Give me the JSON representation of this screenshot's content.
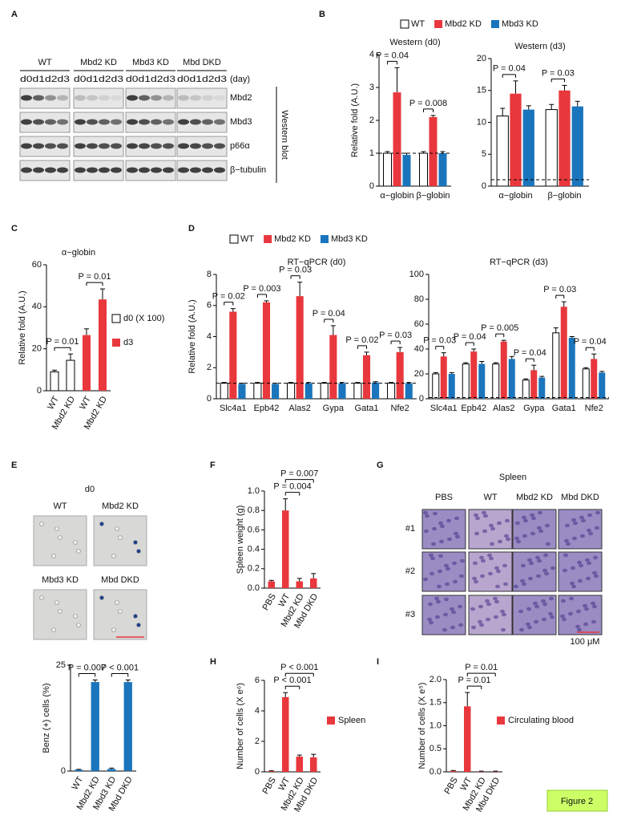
{
  "panel_letters": [
    "A",
    "B",
    "C",
    "D",
    "E",
    "F",
    "G",
    "H",
    "I"
  ],
  "blot": {
    "groups": [
      "WT",
      "Mbd2 KD",
      "Mbd3 KD",
      "Mbd DKD"
    ],
    "days": "d0d1d2d3",
    "day_unit": "(day)",
    "rows": [
      "Mbd2",
      "Mbd3",
      "p66α",
      "β−tubulin"
    ],
    "label": "Western blot"
  },
  "stain": {
    "title": "d0",
    "labels": [
      "WT",
      "Mbd2 KD",
      "Mbd3 KD",
      "Mbd DKD"
    ]
  },
  "histology": {
    "title": "Spleen",
    "columns": [
      "PBS",
      "WT",
      "Mbd2 KD",
      "Mbd DKD"
    ],
    "rows": [
      "#1",
      "#2",
      "#3"
    ],
    "scale": "100 μM"
  },
  "figure_label": "Figure 2",
  "chart_data": [
    {
      "type": "bar",
      "title": "Western (d0)",
      "y_label": "Relative fold (A.U.)",
      "categories": [
        "α−globin",
        "β−globin"
      ],
      "series": [
        {
          "name": "WT",
          "color": "#ffffff",
          "values": [
            1,
            1
          ],
          "errors": [
            0.05,
            0.05
          ]
        },
        {
          "name": "Mbd2 KD",
          "color": "#e8383d",
          "values": [
            2.85,
            2.1
          ],
          "errors": [
            0.75,
            0.05
          ]
        },
        {
          "name": "Mbd3 KD",
          "color": "#1a75bc",
          "values": [
            0.95,
            1.0
          ],
          "errors": [
            0.05,
            0.05
          ]
        }
      ],
      "ylim": [
        0,
        4
      ],
      "yticks": [
        0,
        1,
        2,
        3,
        4
      ],
      "hline": 1,
      "annotations": [
        "P = 0.04",
        "P = 0.008"
      ]
    },
    {
      "type": "bar",
      "title": "Western (d3)",
      "categories": [
        "α−globin",
        "β−globin"
      ],
      "series": [
        {
          "color": "#ffffff",
          "values": [
            11,
            12
          ],
          "errors": [
            1.2,
            0.8
          ]
        },
        {
          "color": "#e8383d",
          "values": [
            14.5,
            15
          ],
          "errors": [
            2,
            0.8
          ]
        },
        {
          "color": "#1a75bc",
          "values": [
            12,
            12.5
          ],
          "errors": [
            0.6,
            0.8
          ]
        }
      ],
      "ylim": [
        0,
        20
      ],
      "yticks": [
        0,
        5,
        10,
        15,
        20
      ],
      "hline": 1,
      "annotations": [
        "P = 0.04",
        "P = 0.03"
      ]
    },
    {
      "type": "bar",
      "title": "α−globin",
      "y_label": "Relative fold (A.U.)",
      "categories": [
        "WT",
        "Mbd2 KD",
        "WT",
        "Mbd2 KD"
      ],
      "values": [
        9,
        14.5,
        26.5,
        43.5
      ],
      "errors": [
        0.8,
        3,
        3,
        5
      ],
      "colors": [
        "#ffffff",
        "#ffffff",
        "#e8383d",
        "#e8383d"
      ],
      "legend": [
        {
          "name": "d0 (X 100)",
          "color": "#ffffff"
        },
        {
          "name": "d3",
          "color": "#e8383d"
        }
      ],
      "ylim": [
        0,
        60
      ],
      "yticks": [
        0,
        20,
        40,
        60
      ],
      "annotations": [
        "P = 0.01",
        "P = 0.01"
      ]
    },
    {
      "type": "bar",
      "title": "RT−qPCR (d0)",
      "y_label": "Relative fold (A.U.)",
      "categories": [
        "Slc4a1",
        "Epb42",
        "Alas2",
        "Gypa",
        "Gata1",
        "Nfe2"
      ],
      "series": [
        {
          "name": "WT",
          "color": "#ffffff",
          "values": [
            1,
            1,
            1,
            1,
            1,
            1
          ],
          "errors": [
            0.05,
            0.05,
            0.05,
            0.05,
            0.05,
            0.05
          ]
        },
        {
          "name": "Mbd2 KD",
          "color": "#e8383d",
          "values": [
            5.6,
            6.2,
            6.6,
            4.1,
            2.8,
            3.0
          ],
          "errors": [
            0.2,
            0.1,
            0.9,
            0.6,
            0.2,
            0.3
          ]
        },
        {
          "name": "Mbd3 KD",
          "color": "#1a75bc",
          "values": [
            0.95,
            0.95,
            1,
            1,
            1.05,
            1.0
          ],
          "errors": [
            0.05,
            0.05,
            0.05,
            0.05,
            0.05,
            0.05
          ]
        }
      ],
      "ylim": [
        0,
        8
      ],
      "yticks": [
        0,
        2,
        4,
        6,
        8
      ],
      "hline": 1,
      "annotations": [
        "P = 0.02",
        "P = 0.003",
        "P = 0.03",
        "P = 0.04",
        "P = 0.02",
        "P = 0.03"
      ]
    },
    {
      "type": "bar",
      "title": "RT−qPCR (d3)",
      "categories": [
        "Slc4a1",
        "Epb42",
        "Alas2",
        "Gypa",
        "Gata1",
        "Nfe2"
      ],
      "series": [
        {
          "color": "#ffffff",
          "values": [
            20,
            28,
            28,
            15,
            53,
            24
          ],
          "errors": [
            1,
            1,
            1,
            1,
            4,
            1
          ]
        },
        {
          "color": "#e8383d",
          "values": [
            34,
            38,
            46,
            23,
            74,
            32
          ],
          "errors": [
            3,
            2,
            1,
            4,
            4,
            4
          ]
        },
        {
          "color": "#1a75bc",
          "values": [
            20,
            28,
            32,
            17,
            49,
            21
          ],
          "errors": [
            1,
            2,
            2,
            1,
            1,
            1
          ]
        }
      ],
      "ylim": [
        0,
        100
      ],
      "yticks": [
        0,
        20,
        40,
        60,
        80,
        100
      ],
      "hline": 1,
      "annotations": [
        "P = 0.03",
        "P = 0.04",
        "P = 0.005",
        "P = 0.04",
        "P = 0.03",
        "P = 0.04"
      ]
    },
    {
      "type": "bar",
      "y_label": "Benz (+) cells (%)",
      "categories": [
        "WT",
        "Mbd2 KD",
        "Mbd3 KD",
        "Mbd DKD"
      ],
      "values": [
        0.3,
        21,
        0.5,
        21
      ],
      "errors": [
        0.1,
        0.5,
        0.2,
        0.5
      ],
      "color": "#1a75bc",
      "ylim": [
        0,
        25
      ],
      "yticks": [
        0,
        25
      ],
      "annotations": [
        "P = 0.007",
        "P < 0.001"
      ]
    },
    {
      "type": "bar",
      "y_label": "Spleen weight (g)",
      "categories": [
        "PBS",
        "WT",
        "Mbd2 KD",
        "Mbd DKD"
      ],
      "values": [
        0.07,
        0.8,
        0.07,
        0.1
      ],
      "errors": [
        0.01,
        0.12,
        0.03,
        0.05
      ],
      "color": "#e8383d",
      "ylim": [
        0,
        1.0
      ],
      "yticks": [
        {
          "value": 0,
          "label": "0.0"
        },
        0.2,
        0.4,
        0.6,
        0.8,
        {
          "value": 1,
          "label": "1.0"
        }
      ],
      "annotations": [
        "P = 0.007",
        "P = 0.004"
      ]
    },
    {
      "type": "bar",
      "y_label": "Number of cells (X e⁶)",
      "categories": [
        "PBS",
        "WT",
        "Mbd2 KD",
        "Mbd DKD"
      ],
      "values": [
        0.05,
        4.9,
        1.0,
        0.95
      ],
      "errors": [
        0.02,
        0.3,
        0.1,
        0.2
      ],
      "color": "#e8383d",
      "legend": [
        {
          "name": "Spleen",
          "color": "#e8383d"
        }
      ],
      "ylim": [
        0,
        6
      ],
      "yticks": [
        0,
        2,
        4,
        6
      ],
      "annotations": [
        "P < 0.001",
        "P < 0.001"
      ]
    },
    {
      "type": "bar",
      "y_label": "Number of cells (X e⁵)",
      "categories": [
        "PBS",
        "WT",
        "Mbd2 KD",
        "Mbd DKD"
      ],
      "values": [
        0.02,
        1.42,
        0.01,
        0.01
      ],
      "errors": [
        0.01,
        0.3,
        0.005,
        0.005
      ],
      "color": "#e8383d",
      "legend": [
        {
          "name": "Circulating blood",
          "color": "#e8383d"
        }
      ],
      "ylim": [
        0,
        2.0
      ],
      "yticks": [
        {
          "value": 0,
          "label": "0.0"
        },
        0.5,
        {
          "value": 1,
          "label": "1.0"
        },
        1.5,
        {
          "value": 2,
          "label": "2.0"
        }
      ],
      "annotations": [
        "P = 0.01",
        "P = 0.01"
      ]
    }
  ]
}
